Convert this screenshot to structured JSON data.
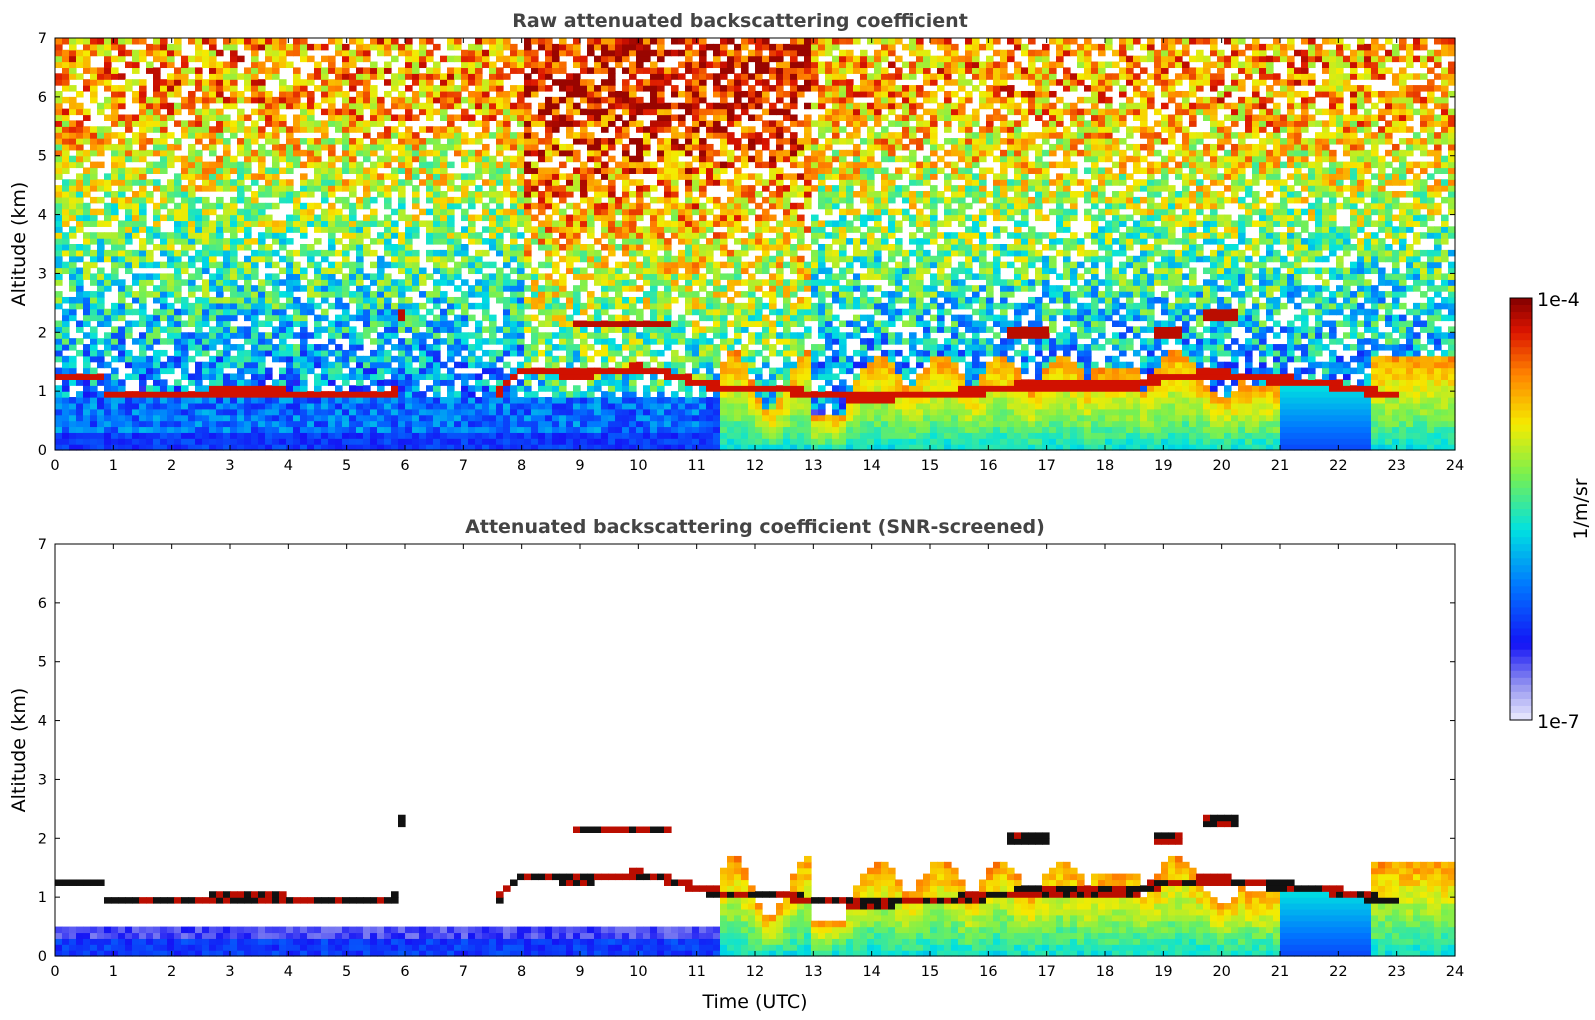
{
  "chart_data": [
    {
      "type": "heatmap",
      "title": "Raw attenuated backscattering coefficient",
      "xlabel": "",
      "ylabel": "Altitude (km)",
      "xlim": [
        0,
        24
      ],
      "ylim": [
        0,
        7
      ],
      "xticks": [
        "0",
        "1",
        "2",
        "3",
        "4",
        "5",
        "6",
        "7",
        "8",
        "9",
        "10",
        "11",
        "12",
        "13",
        "14",
        "15",
        "16",
        "17",
        "18",
        "19",
        "20",
        "21",
        "22",
        "23",
        "24"
      ],
      "yticks": [
        "0",
        "1",
        "2",
        "3",
        "4",
        "5",
        "6",
        "7"
      ],
      "screened": false,
      "cloud_base_km": [
        [
          0,
          1.25
        ],
        [
          0.8,
          1.25
        ],
        [
          0.8,
          0.92
        ],
        [
          2,
          0.95
        ],
        [
          3,
          1.0
        ],
        [
          4,
          0.98
        ],
        [
          5,
          0.98
        ],
        [
          5.8,
          0.98
        ],
        [
          7.6,
          1.0
        ],
        [
          8,
          1.35
        ],
        [
          9,
          1.3
        ],
        [
          10,
          1.4
        ],
        [
          10.5,
          1.3
        ],
        [
          11.5,
          1.05
        ],
        [
          12.5,
          1.05
        ],
        [
          13,
          0.95
        ],
        [
          14,
          0.9
        ],
        [
          15,
          0.95
        ],
        [
          15.8,
          1.0
        ],
        [
          16.6,
          1.1
        ],
        [
          17.5,
          1.1
        ],
        [
          18.5,
          1.1
        ],
        [
          19,
          1.25
        ],
        [
          20,
          1.3
        ],
        [
          20.5,
          1.25
        ],
        [
          21,
          1.2
        ],
        [
          22,
          1.1
        ],
        [
          22.8,
          0.95
        ]
      ],
      "elevated_layers_km": [
        [
          8.9,
          10.5,
          2.15
        ],
        [
          16.3,
          17.0,
          2.0
        ],
        [
          19.7,
          20.3,
          2.3
        ],
        [
          18.9,
          19.3,
          2.0
        ],
        [
          5.9,
          6.0,
          2.3
        ]
      ]
    },
    {
      "type": "heatmap",
      "title": "Attenuated backscattering coefficient (SNR-screened)",
      "xlabel": "Time (UTC)",
      "ylabel": "Altitude (km)",
      "xlim": [
        0,
        24
      ],
      "ylim": [
        0,
        7
      ],
      "xticks": [
        "0",
        "1",
        "2",
        "3",
        "4",
        "5",
        "6",
        "7",
        "8",
        "9",
        "10",
        "11",
        "12",
        "13",
        "14",
        "15",
        "16",
        "17",
        "18",
        "19",
        "20",
        "21",
        "22",
        "23",
        "24"
      ],
      "yticks": [
        "0",
        "1",
        "2",
        "3",
        "4",
        "5",
        "6",
        "7"
      ],
      "screened": true
    }
  ],
  "colorbar": {
    "min_label": "1e-7",
    "max_label": "1e-4",
    "unit_label": "1/m/sr"
  }
}
